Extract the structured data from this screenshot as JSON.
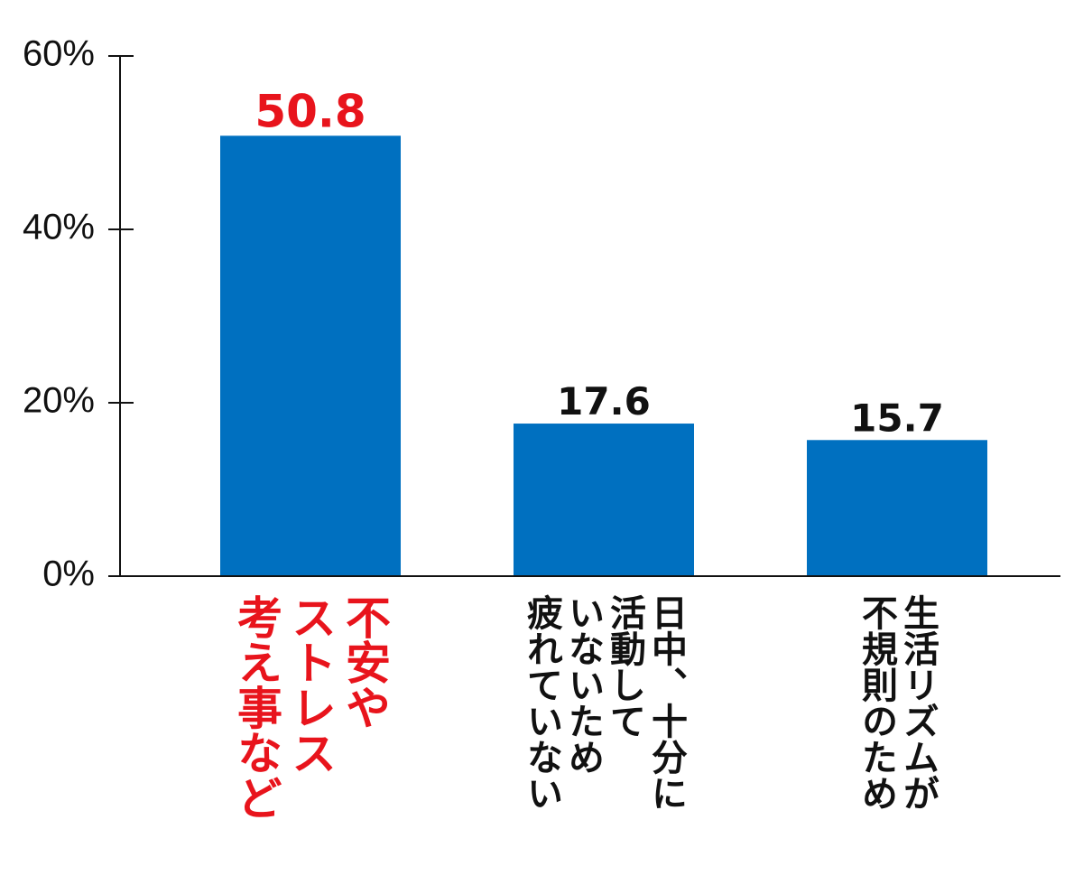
{
  "chart_data": {
    "type": "bar",
    "categories": [
      [
        "不安や",
        "ストレス",
        "考え事など"
      ],
      [
        "日中、十分に",
        "活動して",
        "いないため",
        "疲れていない"
      ],
      [
        "生活リズムが",
        "不規則のため"
      ]
    ],
    "values": [
      50.8,
      17.6,
      15.7
    ],
    "color": "#0070c0",
    "label_colors": [
      "#e8141c",
      "#111111",
      "#111111"
    ],
    "ylim": [
      0,
      60
    ],
    "yticks": [
      {
        "value": 0,
        "label": "0%"
      },
      {
        "value": 20,
        "label": "20%"
      },
      {
        "value": 40,
        "label": "40%"
      },
      {
        "value": 60,
        "label": "60%"
      }
    ]
  }
}
